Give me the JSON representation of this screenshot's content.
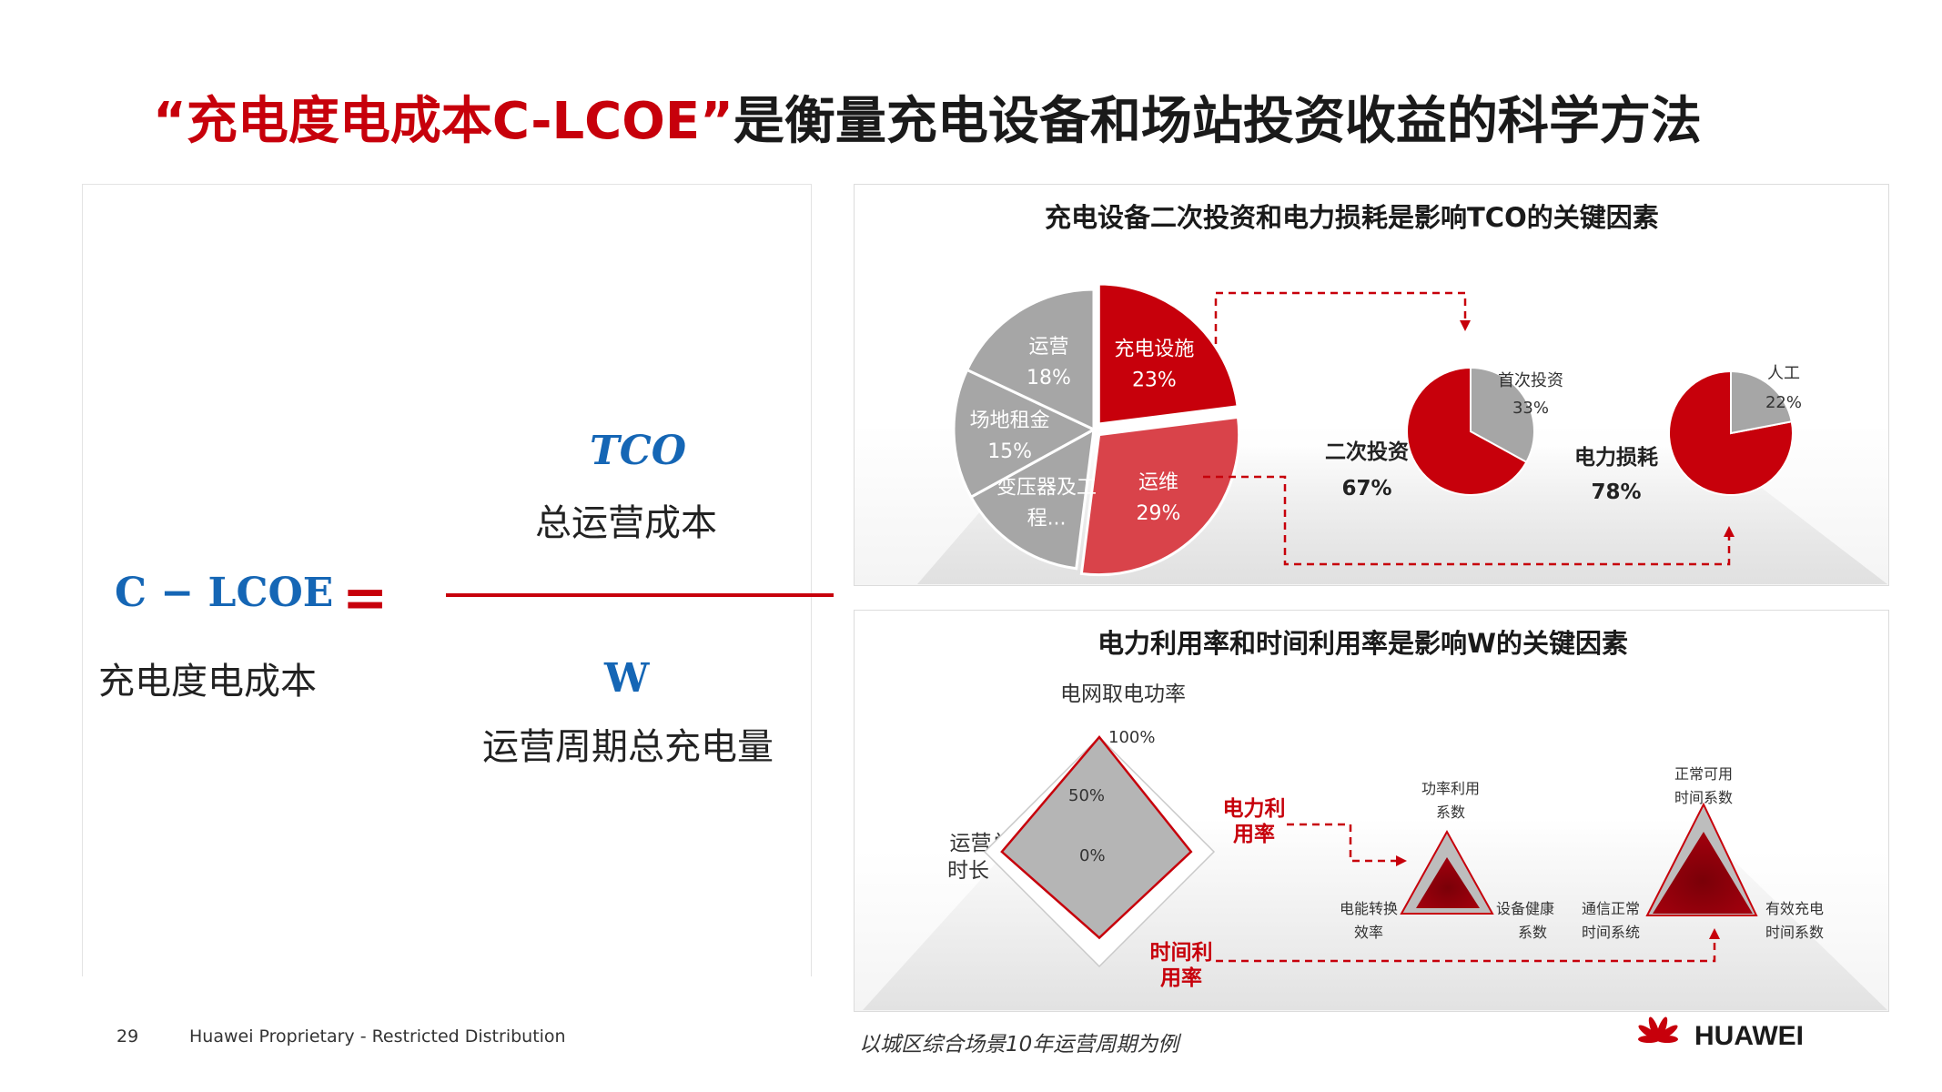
{
  "title": {
    "quote_open": "“",
    "highlight": "充电度电成本C-LCOE",
    "quote_close": "”",
    "rest": "是衡量充电设备和场站投资收益的科学方法"
  },
  "formula": {
    "lhs_symbol": "C − LCOE",
    "lhs_label": "充电度电成本",
    "equals": "=",
    "numerator_symbol": "TCO",
    "numerator_label": "总运营成本",
    "denominator_symbol": "W",
    "denominator_label": "运营周期总充电量"
  },
  "tco_panel": {
    "title": "充电设备二次投资和电力损耗是影响TCO的关键因素",
    "pie": [
      {
        "name": "充电设施",
        "pct": "23%",
        "value": 23,
        "color": "#c7000b",
        "text_color": "#ffffff"
      },
      {
        "name": "运维",
        "pct": "29%",
        "value": 29,
        "color": "#d9434a",
        "text_color": "#ffffff"
      },
      {
        "name": "变压器及工程...",
        "name_line1": "变压器及工",
        "name_line2": "程...",
        "value": 15,
        "color": "#a6a6a6",
        "text_color": "#ffffff"
      },
      {
        "name": "场地租金",
        "pct": "15%",
        "value": 15,
        "color": "#a6a6a6",
        "text_color": "#ffffff"
      },
      {
        "name": "运营",
        "pct": "18%",
        "value": 18,
        "color": "#a6a6a6",
        "text_color": "#ffffff"
      }
    ],
    "invest_pie": {
      "big_label": "二次投资",
      "big_pct": "67%",
      "small_label": "首次投资",
      "small_pct": "33%",
      "big_value": 67,
      "small_value": 33
    },
    "loss_pie": {
      "big_label": "电力损耗",
      "big_pct": "78%",
      "small_label": "人工",
      "small_pct": "22%",
      "big_value": 78,
      "small_value": 22
    }
  },
  "w_panel": {
    "title": "电力利用率和时间利用率是影响W的关键因素",
    "radar": {
      "top_label": "电网取电功率",
      "left_label_1": "运营总",
      "left_label_2": "时长",
      "ticks": [
        "100%",
        "50%",
        "0%"
      ],
      "values": {
        "top": 1.0,
        "right": 0.8,
        "bottom": 0.75,
        "left": 0.85
      }
    },
    "power_util_1": "电力利",
    "power_util_2": "用率",
    "time_util_1": "时间利",
    "time_util_2": "用率",
    "tri1": {
      "top_1": "功率利用",
      "top_2": "系数",
      "left_1": "电能转换",
      "left_2": "效率",
      "right_1": "设备健康",
      "right_2": "系数"
    },
    "tri2": {
      "top_1": "正常可用",
      "top_2": "时间系数",
      "left_1": "通信正常",
      "left_2": "时间系统",
      "right_1": "有效充电",
      "right_2": "时间系数"
    }
  },
  "footer": {
    "page": "29",
    "distribution": "Huawei Proprietary - Restricted Distribution",
    "note": "以城区综合场景10年运营周期为例",
    "brand": "HUAWEI"
  },
  "colors": {
    "brand_red": "#c7000b",
    "formula_blue": "#1566b5",
    "gray": "#a6a6a6"
  }
}
